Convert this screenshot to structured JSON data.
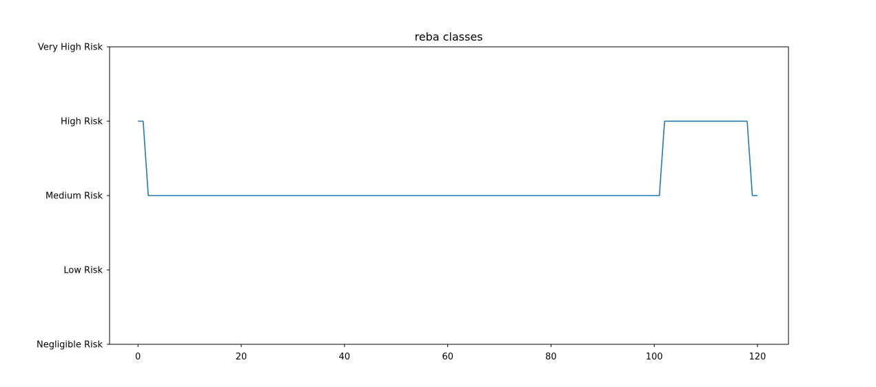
{
  "chart_data": {
    "type": "line",
    "title": "reba classes",
    "xlabel": "",
    "ylabel": "",
    "xlim": [
      -5.5,
      126
    ],
    "ylim": [
      0,
      4
    ],
    "x_ticks": [
      0,
      20,
      40,
      60,
      80,
      100,
      120
    ],
    "y_ticks": [
      0,
      1,
      2,
      3,
      4
    ],
    "y_tick_labels": [
      "Negligible Risk",
      "Low Risk",
      "Medium Risk",
      "High Risk",
      "Very High Risk"
    ],
    "grid": false,
    "series": [
      {
        "color": "#1f77b4",
        "x": [
          0,
          1,
          2,
          101,
          102,
          118,
          119,
          120
        ],
        "y": [
          3,
          3,
          2,
          2,
          3,
          3,
          2,
          2
        ]
      }
    ]
  }
}
